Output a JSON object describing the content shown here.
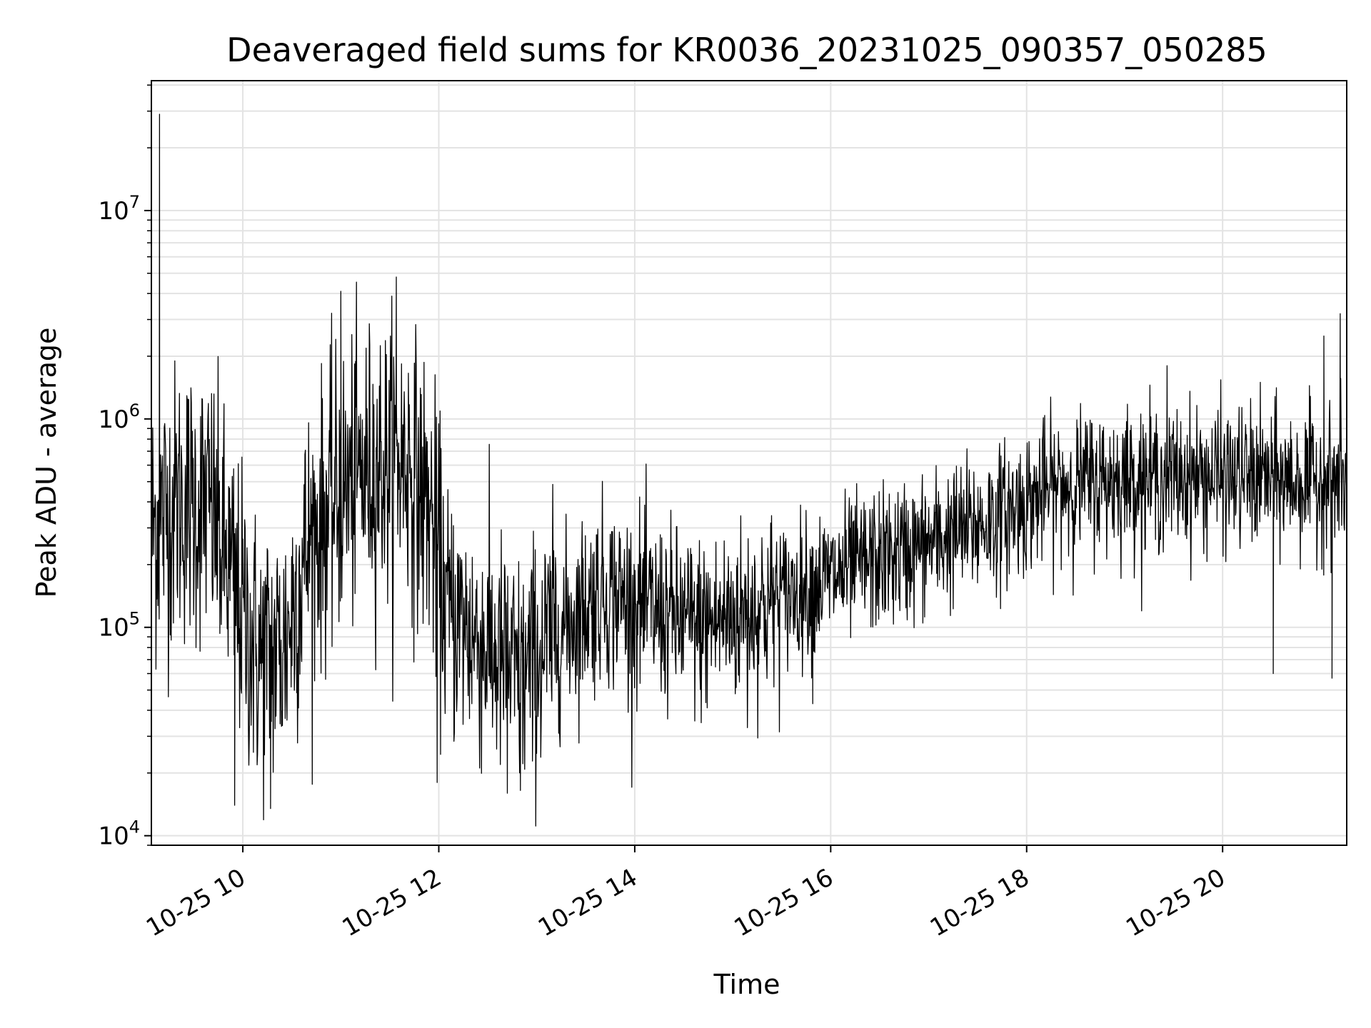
{
  "chart_data": {
    "type": "line",
    "title": "Deaveraged field sums for KR0036_20231025_090357_050285",
    "xlabel": "Time",
    "ylabel": "Peak ADU - average",
    "yscale": "log",
    "ylim": [
      9000,
      42000000
    ],
    "xlim": [
      "2023-10-25T09:04",
      "2023-10-25T21:16"
    ],
    "grid": true,
    "x_ticks": [
      "10-25 10",
      "10-25 12",
      "10-25 14",
      "10-25 16",
      "10-25 18",
      "10-25 20"
    ],
    "y_ticks": [
      {
        "base": "10",
        "exp": "4",
        "value": 10000
      },
      {
        "base": "10",
        "exp": "5",
        "value": 100000
      },
      {
        "base": "10",
        "exp": "6",
        "value": 1000000
      },
      {
        "base": "10",
        "exp": "7",
        "value": 10000000
      }
    ],
    "series": [
      {
        "color": "#000000",
        "trend": [
          [
            "2023-10-25T09:04",
            300000
          ],
          [
            "2023-10-25T09:20",
            400000
          ],
          [
            "2023-10-25T09:40",
            380000
          ],
          [
            "2023-10-25T09:55",
            150000
          ],
          [
            "2023-10-25T10:10",
            70000
          ],
          [
            "2023-10-25T10:25",
            80000
          ],
          [
            "2023-10-25T10:40",
            250000
          ],
          [
            "2023-10-25T11:00",
            450000
          ],
          [
            "2023-10-25T11:20",
            600000
          ],
          [
            "2023-10-25T11:40",
            650000
          ],
          [
            "2023-10-25T11:55",
            350000
          ],
          [
            "2023-10-25T12:05",
            120000
          ],
          [
            "2023-10-25T12:30",
            80000
          ],
          [
            "2023-10-25T12:50",
            55000
          ],
          [
            "2023-10-25T13:10",
            90000
          ],
          [
            "2023-10-25T13:40",
            150000
          ],
          [
            "2023-10-25T14:10",
            120000
          ],
          [
            "2023-10-25T14:40",
            100000
          ],
          [
            "2023-10-25T15:10",
            120000
          ],
          [
            "2023-10-25T15:40",
            150000
          ],
          [
            "2023-10-25T16:20",
            200000
          ],
          [
            "2023-10-25T17:00",
            250000
          ],
          [
            "2023-10-25T17:40",
            330000
          ],
          [
            "2023-10-25T18:20",
            480000
          ],
          [
            "2023-10-25T19:00",
            520000
          ],
          [
            "2023-10-25T19:40",
            530000
          ],
          [
            "2023-10-25T20:20",
            520000
          ],
          [
            "2023-10-25T20:50",
            500000
          ],
          [
            "2023-10-25T21:16",
            500000
          ]
        ],
        "spikes": [
          [
            "2023-10-25T09:09",
            29000000
          ],
          [
            "2023-10-25T09:55",
            14000
          ],
          [
            "2023-10-25T10:17",
            13500
          ],
          [
            "2023-10-25T11:00",
            4100000
          ],
          [
            "2023-10-25T11:34",
            4800000
          ],
          [
            "2023-10-25T11:59",
            18000
          ],
          [
            "2023-10-25T12:42",
            16000
          ],
          [
            "2023-10-25T12:50",
            16500
          ],
          [
            "2023-10-25T15:09",
            33000
          ],
          [
            "2023-10-25T15:49",
            43000
          ],
          [
            "2023-10-25T19:26",
            1800000
          ],
          [
            "2023-10-25T20:31",
            60000
          ],
          [
            "2023-10-25T21:02",
            2500000
          ],
          [
            "2023-10-25T21:07",
            57000
          ],
          [
            "2023-10-25T21:12",
            3200000
          ]
        ]
      }
    ]
  }
}
